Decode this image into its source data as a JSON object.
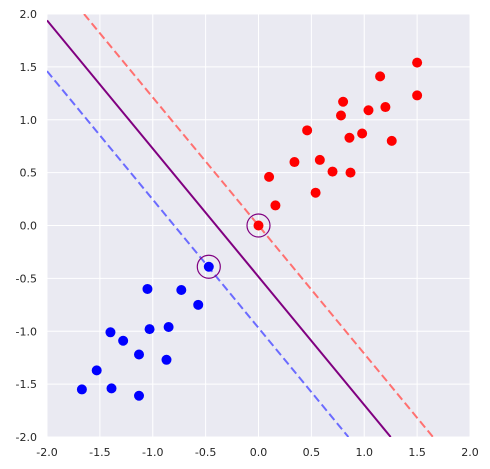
{
  "chart_data": {
    "type": "scatter",
    "title": "",
    "xlabel": "",
    "ylabel": "",
    "xlim": [
      -2.0,
      2.0
    ],
    "ylim": [
      -2.0,
      2.0
    ],
    "x_ticks": [
      -2.0,
      -1.5,
      -1.0,
      -0.5,
      0.0,
      0.5,
      1.0,
      1.5,
      2.0
    ],
    "x_tick_labels": [
      "-2.0",
      "-1.5",
      "-1.0",
      "-0.5",
      "0.0",
      "0.5",
      "1.0",
      "1.5",
      "2.0"
    ],
    "y_ticks": [
      -2.0,
      -1.5,
      -1.0,
      -0.5,
      0.0,
      0.5,
      1.0,
      1.5,
      2.0
    ],
    "y_tick_labels": [
      "-2.0",
      "-1.5",
      "-1.0",
      "-0.5",
      "0.0",
      "0.5",
      "1.0",
      "1.5",
      "2.0"
    ],
    "grid": true,
    "background": "#eaeaf2",
    "series": [
      {
        "color": "#ff0000",
        "points": [
          [
            0.1,
            0.46
          ],
          [
            0.16,
            0.19
          ],
          [
            0.34,
            0.6
          ],
          [
            0.46,
            0.9
          ],
          [
            0.54,
            0.31
          ],
          [
            0.58,
            0.62
          ],
          [
            0.7,
            0.51
          ],
          [
            0.78,
            1.04
          ],
          [
            0.8,
            1.17
          ],
          [
            0.86,
            0.83
          ],
          [
            0.87,
            0.5
          ],
          [
            0.98,
            0.87
          ],
          [
            1.04,
            1.09
          ],
          [
            1.15,
            1.41
          ],
          [
            1.2,
            1.12
          ],
          [
            1.26,
            0.8
          ],
          [
            1.5,
            1.54
          ],
          [
            1.5,
            1.23
          ],
          [
            0.0,
            0.0
          ]
        ]
      },
      {
        "color": "#0000ff",
        "points": [
          [
            -1.05,
            -0.6
          ],
          [
            -0.73,
            -0.61
          ],
          [
            -0.57,
            -0.75
          ],
          [
            -1.4,
            -1.01
          ],
          [
            -1.03,
            -0.98
          ],
          [
            -0.85,
            -0.96
          ],
          [
            -1.28,
            -1.09
          ],
          [
            -1.53,
            -1.37
          ],
          [
            -1.13,
            -1.22
          ],
          [
            -0.87,
            -1.27
          ],
          [
            -1.67,
            -1.55
          ],
          [
            -1.39,
            -1.54
          ],
          [
            -1.13,
            -1.61
          ],
          [
            -0.47,
            -0.39
          ]
        ]
      }
    ],
    "support_vectors": [
      [
        0.0,
        0.0
      ],
      [
        -0.47,
        -0.39
      ]
    ],
    "lines": [
      {
        "role": "decision-boundary",
        "color": "#800080",
        "style": "solid",
        "points": [
          [
            -2.0,
            1.94
          ],
          [
            1.25,
            -2.0
          ]
        ]
      },
      {
        "role": "margin-positive",
        "color": "#ff7070",
        "style": "dashed",
        "points": [
          [
            -1.65,
            2.0
          ],
          [
            1.65,
            -2.0
          ]
        ]
      },
      {
        "role": "margin-negative",
        "color": "#6b6bff",
        "style": "dashed",
        "points": [
          [
            -2.0,
            1.46
          ],
          [
            0.85,
            -2.0
          ]
        ]
      }
    ],
    "colors": {
      "grid": "#ffffff",
      "tick_text": "#262626",
      "support_vector_ring": "#800080"
    }
  }
}
